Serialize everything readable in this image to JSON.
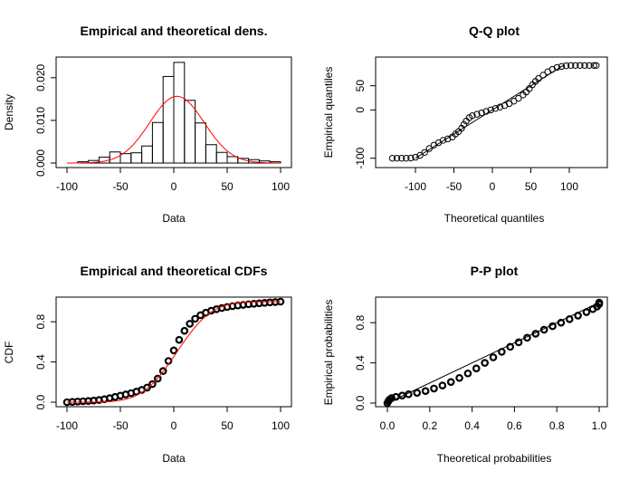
{
  "chart_data": [
    {
      "type": "histogram",
      "title": "Empirical and theoretical dens.",
      "xlabel": "Data",
      "ylabel": "Density",
      "xlim": [
        -100,
        100
      ],
      "ylim": [
        0,
        0.024
      ],
      "xticks": [
        -100,
        -50,
        0,
        50,
        100
      ],
      "yticks": [
        0,
        0.01,
        0.02
      ],
      "ytick_labels": [
        "0.000",
        "0.010",
        "0.020"
      ],
      "bins": [
        {
          "x0": -90,
          "x1": -80,
          "y": 0.0003
        },
        {
          "x0": -80,
          "x1": -70,
          "y": 0.0006
        },
        {
          "x0": -70,
          "x1": -60,
          "y": 0.0014
        },
        {
          "x0": -60,
          "x1": -50,
          "y": 0.0026
        },
        {
          "x0": -50,
          "x1": -40,
          "y": 0.0022
        },
        {
          "x0": -40,
          "x1": -30,
          "y": 0.0024
        },
        {
          "x0": -30,
          "x1": -20,
          "y": 0.004
        },
        {
          "x0": -20,
          "x1": -10,
          "y": 0.0095
        },
        {
          "x0": -10,
          "x1": 0,
          "y": 0.0203
        },
        {
          "x0": 0,
          "x1": 10,
          "y": 0.0236
        },
        {
          "x0": 10,
          "x1": 20,
          "y": 0.0147
        },
        {
          "x0": 20,
          "x1": 30,
          "y": 0.0094
        },
        {
          "x0": 30,
          "x1": 40,
          "y": 0.0043
        },
        {
          "x0": 40,
          "x1": 50,
          "y": 0.0025
        },
        {
          "x0": 50,
          "x1": 60,
          "y": 0.0015
        },
        {
          "x0": 60,
          "x1": 70,
          "y": 0.0011
        },
        {
          "x0": 70,
          "x1": 80,
          "y": 0.0008
        },
        {
          "x0": 80,
          "x1": 90,
          "y": 0.0005
        },
        {
          "x0": 90,
          "x1": 100,
          "y": 0.0003
        }
      ],
      "density_curve": {
        "type": "normal",
        "mean": 3,
        "sd": 25.5,
        "color": "#ff0000"
      }
    },
    {
      "type": "scatter",
      "title": "Q-Q plot",
      "xlabel": "Theoretical quantiles",
      "ylabel": "Empirical quantiles",
      "xlim": [
        -140,
        140
      ],
      "ylim": [
        -110,
        100
      ],
      "xticks": [
        -100,
        -50,
        0,
        50,
        100
      ],
      "yticks": [
        -100,
        0,
        50
      ],
      "points": [
        [
          -130,
          -100
        ],
        [
          -124,
          -100
        ],
        [
          -118,
          -100
        ],
        [
          -112,
          -100
        ],
        [
          -106,
          -99.5
        ],
        [
          -100,
          -98
        ],
        [
          -94,
          -94
        ],
        [
          -88,
          -88
        ],
        [
          -82,
          -80
        ],
        [
          -76,
          -73
        ],
        [
          -70,
          -68
        ],
        [
          -64,
          -63
        ],
        [
          -58,
          -60
        ],
        [
          -52,
          -56
        ],
        [
          -48,
          -50
        ],
        [
          -44,
          -45
        ],
        [
          -40,
          -38
        ],
        [
          -37,
          -30
        ],
        [
          -34,
          -23
        ],
        [
          -30,
          -16
        ],
        [
          -26,
          -12
        ],
        [
          -20,
          -9
        ],
        [
          -14,
          -6
        ],
        [
          -8,
          -3
        ],
        [
          -2,
          0
        ],
        [
          4,
          3
        ],
        [
          10,
          6
        ],
        [
          16,
          9
        ],
        [
          22,
          13
        ],
        [
          28,
          18
        ],
        [
          34,
          24
        ],
        [
          40,
          31
        ],
        [
          44,
          37
        ],
        [
          48,
          44
        ],
        [
          52,
          52
        ],
        [
          56,
          59
        ],
        [
          60,
          65
        ],
        [
          66,
          72
        ],
        [
          72,
          79
        ],
        [
          78,
          84
        ],
        [
          84,
          88
        ],
        [
          90,
          90
        ],
        [
          96,
          91.5
        ],
        [
          102,
          92
        ],
        [
          108,
          92
        ],
        [
          114,
          92
        ],
        [
          120,
          92
        ],
        [
          126,
          92
        ],
        [
          132,
          92
        ],
        [
          135,
          92
        ]
      ],
      "reference_line": {
        "from": [
          -100,
          -100
        ],
        "to": [
          92,
          92
        ]
      }
    },
    {
      "type": "line",
      "title": "Empirical and theoretical CDFs",
      "xlabel": "Data",
      "ylabel": "CDF",
      "xlim": [
        -100,
        100
      ],
      "ylim": [
        0,
        1
      ],
      "xticks": [
        -100,
        -50,
        0,
        50,
        100
      ],
      "yticks": [
        0,
        0.4,
        0.8
      ],
      "ytick_labels": [
        "0.0",
        "0.4",
        "0.8"
      ],
      "empirical": [
        [
          -100,
          0.0
        ],
        [
          -95,
          0.003
        ],
        [
          -90,
          0.006
        ],
        [
          -85,
          0.009
        ],
        [
          -80,
          0.012
        ],
        [
          -75,
          0.016
        ],
        [
          -70,
          0.022
        ],
        [
          -65,
          0.03
        ],
        [
          -60,
          0.04
        ],
        [
          -55,
          0.052
        ],
        [
          -50,
          0.065
        ],
        [
          -45,
          0.077
        ],
        [
          -40,
          0.09
        ],
        [
          -35,
          0.105
        ],
        [
          -30,
          0.122
        ],
        [
          -25,
          0.145
        ],
        [
          -20,
          0.18
        ],
        [
          -15,
          0.235
        ],
        [
          -10,
          0.31
        ],
        [
          -5,
          0.41
        ],
        [
          0,
          0.515
        ],
        [
          5,
          0.62
        ],
        [
          10,
          0.71
        ],
        [
          15,
          0.78
        ],
        [
          20,
          0.83
        ],
        [
          25,
          0.865
        ],
        [
          30,
          0.89
        ],
        [
          35,
          0.91
        ],
        [
          40,
          0.925
        ],
        [
          45,
          0.937
        ],
        [
          50,
          0.947
        ],
        [
          55,
          0.955
        ],
        [
          60,
          0.962
        ],
        [
          65,
          0.968
        ],
        [
          70,
          0.974
        ],
        [
          75,
          0.979
        ],
        [
          80,
          0.984
        ],
        [
          85,
          0.988
        ],
        [
          90,
          0.993
        ],
        [
          95,
          0.996
        ],
        [
          100,
          1.0
        ]
      ],
      "theoretical_curve": {
        "type": "normal_cdf",
        "mean": 3,
        "sd": 25.5,
        "color": "#ff0000"
      }
    },
    {
      "type": "scatter",
      "title": "P-P plot",
      "xlabel": "Theoretical probabilities",
      "ylabel": "Empirical probabilities",
      "xlim": [
        0,
        1
      ],
      "ylim": [
        0,
        1
      ],
      "xticks": [
        0,
        0.2,
        0.4,
        0.6,
        0.8,
        1.0
      ],
      "xtick_labels": [
        "0.0",
        "0.2",
        "0.4",
        "0.6",
        "0.8",
        "1.0"
      ],
      "yticks": [
        0,
        0.4,
        0.8
      ],
      "ytick_labels": [
        "0.0",
        "0.4",
        "0.8"
      ],
      "points": [
        [
          0.0,
          0.0
        ],
        [
          0.005,
          0.02
        ],
        [
          0.01,
          0.035
        ],
        [
          0.02,
          0.05
        ],
        [
          0.04,
          0.062
        ],
        [
          0.07,
          0.075
        ],
        [
          0.1,
          0.088
        ],
        [
          0.14,
          0.102
        ],
        [
          0.18,
          0.12
        ],
        [
          0.22,
          0.145
        ],
        [
          0.26,
          0.175
        ],
        [
          0.3,
          0.21
        ],
        [
          0.34,
          0.25
        ],
        [
          0.38,
          0.295
        ],
        [
          0.42,
          0.345
        ],
        [
          0.46,
          0.4
        ],
        [
          0.5,
          0.455
        ],
        [
          0.54,
          0.51
        ],
        [
          0.58,
          0.56
        ],
        [
          0.62,
          0.605
        ],
        [
          0.66,
          0.65
        ],
        [
          0.7,
          0.69
        ],
        [
          0.74,
          0.73
        ],
        [
          0.78,
          0.765
        ],
        [
          0.82,
          0.8
        ],
        [
          0.86,
          0.835
        ],
        [
          0.9,
          0.87
        ],
        [
          0.94,
          0.905
        ],
        [
          0.97,
          0.935
        ],
        [
          0.99,
          0.96
        ],
        [
          1.0,
          0.985
        ],
        [
          1.0,
          1.0
        ]
      ],
      "reference_line": {
        "from": [
          0,
          0
        ],
        "to": [
          1,
          1
        ]
      }
    }
  ]
}
